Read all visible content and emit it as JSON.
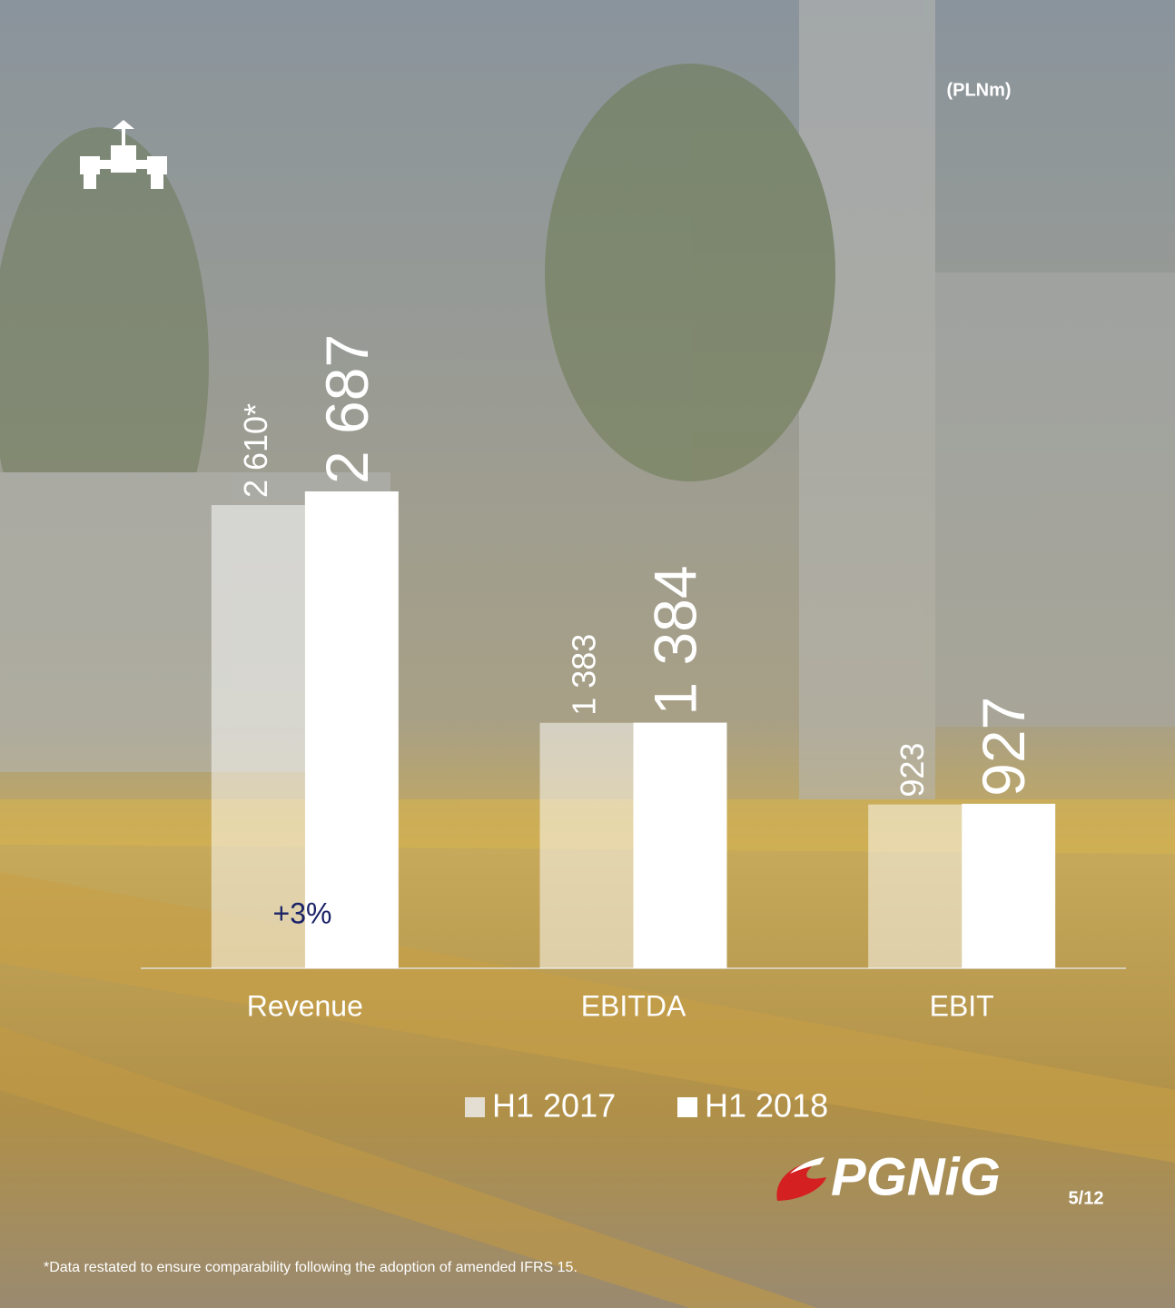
{
  "chart_data": {
    "type": "bar",
    "unit_label": "(PLNm)",
    "categories": [
      "Revenue",
      "EBITDA",
      "EBIT"
    ],
    "series": [
      {
        "name": "H1 2017",
        "color": "rgba(255,255,255,0.5)",
        "values": [
          2610,
          1383,
          923
        ],
        "value_labels": [
          "2 610*",
          "1 383",
          "923"
        ]
      },
      {
        "name": "H1 2018",
        "color": "#ffffff",
        "values": [
          2687,
          1384,
          927
        ],
        "value_labels": [
          "2 687",
          "1 384",
          "927"
        ]
      }
    ],
    "annotation": "+3%",
    "footnote": "*Data restated to ensure comparability following the adoption of amended IFRS 15.",
    "page_number": "5/12",
    "logo": "PGNiG"
  }
}
